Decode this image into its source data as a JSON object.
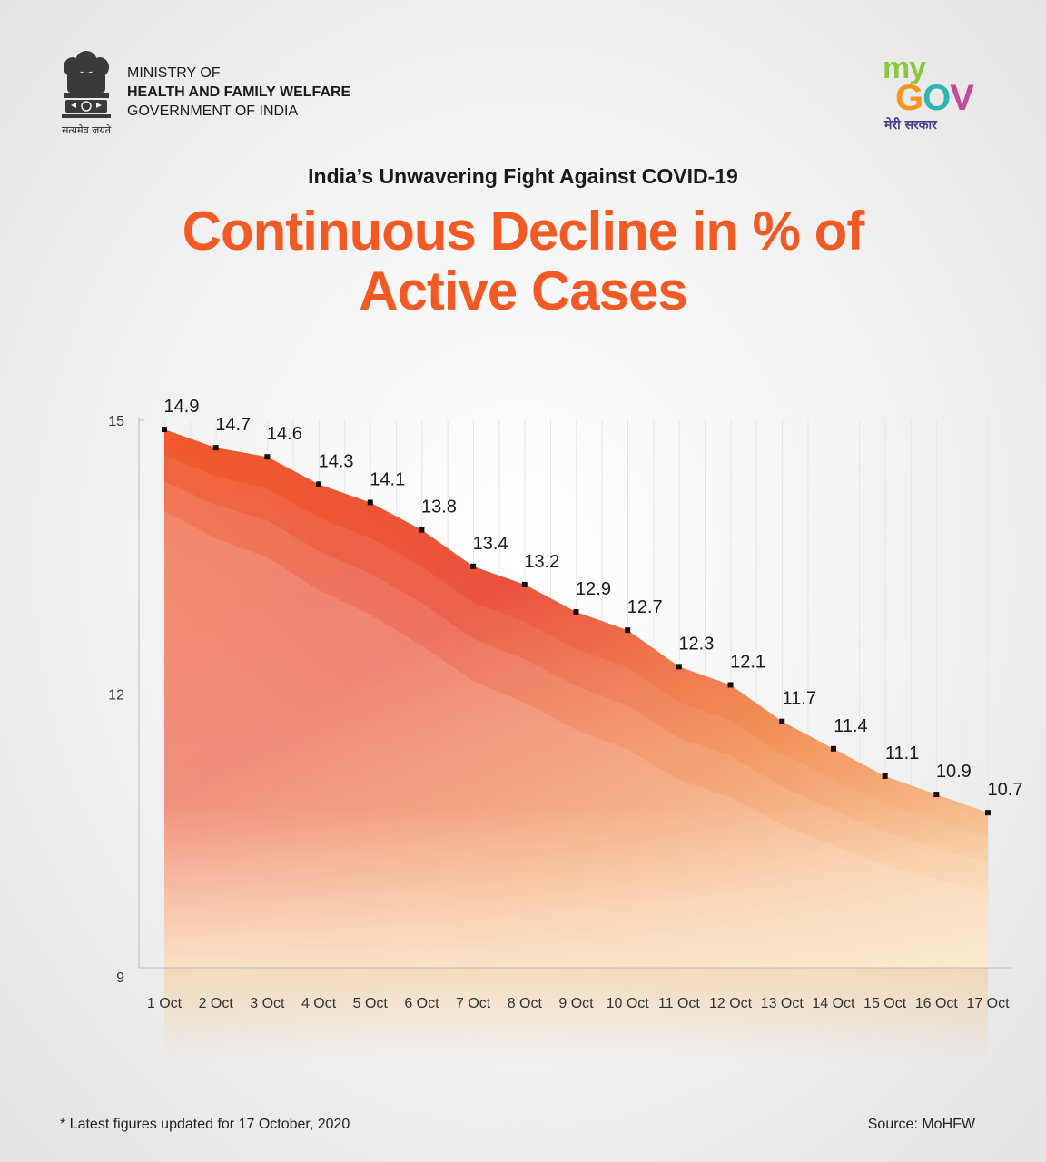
{
  "header": {
    "motto": "सत्यमेव जयते",
    "ministry_line1": "MINISTRY OF",
    "ministry_line2": "HEALTH AND FAMILY WELFARE",
    "ministry_line3": "GOVERNMENT OF INDIA",
    "logo_my": "my",
    "logo_gov_g": "G",
    "logo_gov_o": "O",
    "logo_gov_v": "V",
    "logo_hindi": "मेरी सरकार"
  },
  "subtitle": "India’s Unwavering Fight Against COVID-19",
  "title_line1": "Continuous Decline in % of",
  "title_line2": "Active Cases",
  "footnote": "* Latest figures updated for 17 October, 2020",
  "source": "Source: MoHFW",
  "colors": {
    "accent": "#f15a24",
    "area_top": "#e8402a",
    "area_bottom": "#f7c98f"
  },
  "chart_data": {
    "type": "area",
    "title": "Continuous Decline in % of Active Cases",
    "xlabel": "",
    "ylabel": "",
    "ylim": [
      9,
      15
    ],
    "yticks": [
      9,
      12,
      15
    ],
    "categories": [
      "1 Oct",
      "2 Oct",
      "3 Oct",
      "4 Oct",
      "5 Oct",
      "6 Oct",
      "7 Oct",
      "8 Oct",
      "9 Oct",
      "10 Oct",
      "11 Oct",
      "12 Oct",
      "13 Oct",
      "14 Oct",
      "15 Oct",
      "16 Oct",
      "17 Oct"
    ],
    "series": [
      {
        "name": "% of Active Cases",
        "values": [
          14.9,
          14.7,
          14.6,
          14.3,
          14.1,
          13.8,
          13.4,
          13.2,
          12.9,
          12.7,
          12.3,
          12.1,
          11.7,
          11.4,
          11.1,
          10.9,
          10.7
        ]
      }
    ],
    "data_labels": [
      "14.9",
      "14.7",
      "14.6",
      "14.3",
      "14.1",
      "13.8",
      "13.4",
      "13.2",
      "12.9",
      "12.7",
      "12.3",
      "12.1",
      "11.7",
      "11.4",
      "11.1",
      "10.9",
      "10.7"
    ],
    "grid": "vertical",
    "legend": "none"
  }
}
